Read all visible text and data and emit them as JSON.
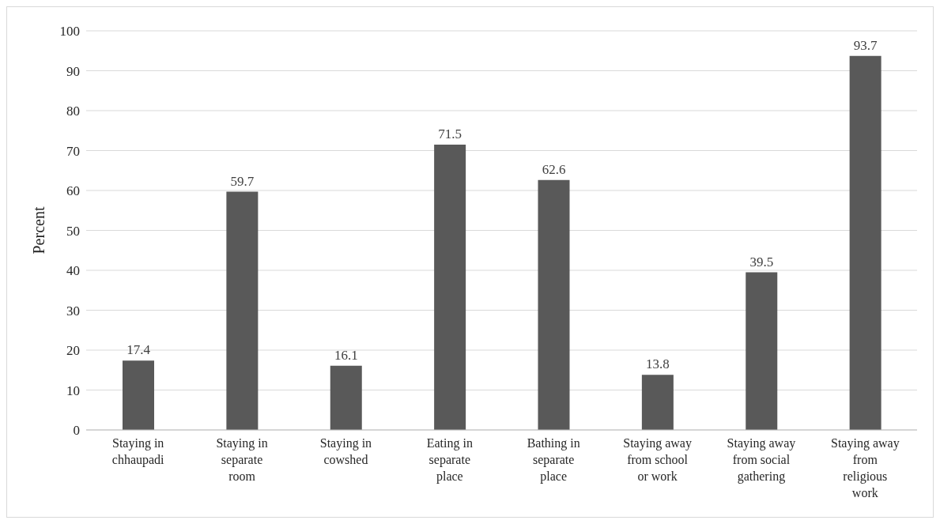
{
  "chart_data": {
    "type": "bar",
    "ylabel": "Percent",
    "categories": [
      "Staying in chhaupadi",
      "Staying in separate room",
      "Staying in cowshed",
      "Eating in separate place",
      "Bathing in separate place",
      "Staying away from school or work",
      "Staying away from social gathering",
      "Staying away from religious work"
    ],
    "values": [
      17.4,
      59.7,
      16.1,
      71.5,
      62.6,
      13.8,
      39.5,
      93.7
    ],
    "color": "#595959",
    "ylim": [
      0,
      100
    ],
    "yticks": [
      0,
      10,
      20,
      30,
      40,
      50,
      60,
      70,
      80,
      90,
      100
    ],
    "grid": "y",
    "data_labels": true,
    "legend": false
  }
}
